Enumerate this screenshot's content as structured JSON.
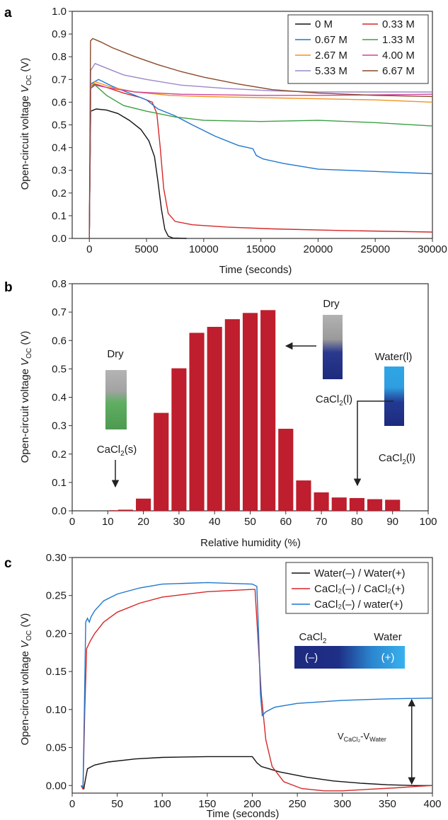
{
  "chart_data": [
    {
      "panel": "a",
      "type": "line",
      "xlabel": "Time (seconds)",
      "ylabel": "Open-circuit voltage V_OC (V)",
      "xlim": [
        -1500,
        30000
      ],
      "ylim": [
        0,
        1.0
      ],
      "xticks": [
        0,
        5000,
        10000,
        15000,
        20000,
        25000,
        30000
      ],
      "yticks": [
        0.0,
        0.1,
        0.2,
        0.3,
        0.4,
        0.5,
        0.6,
        0.7,
        0.8,
        0.9,
        1.0
      ],
      "legend_position": "top-right",
      "series": [
        {
          "name": "0 M",
          "color": "#111111",
          "points": [
            [
              0,
              0
            ],
            [
              120,
              0.56
            ],
            [
              600,
              0.57
            ],
            [
              1500,
              0.565
            ],
            [
              2500,
              0.55
            ],
            [
              3500,
              0.52
            ],
            [
              4500,
              0.48
            ],
            [
              5200,
              0.43
            ],
            [
              5700,
              0.36
            ],
            [
              6000,
              0.25
            ],
            [
              6300,
              0.13
            ],
            [
              6600,
              0.04
            ],
            [
              6900,
              0.01
            ],
            [
              7300,
              0.002
            ],
            [
              8500,
              0.0
            ]
          ]
        },
        {
          "name": "0.33 M",
          "color": "#d62728",
          "points": [
            [
              0,
              0
            ],
            [
              120,
              0.66
            ],
            [
              500,
              0.68
            ],
            [
              1500,
              0.665
            ],
            [
              3000,
              0.64
            ],
            [
              4500,
              0.62
            ],
            [
              5500,
              0.6
            ],
            [
              5900,
              0.55
            ],
            [
              6200,
              0.4
            ],
            [
              6500,
              0.22
            ],
            [
              6900,
              0.11
            ],
            [
              7500,
              0.075
            ],
            [
              9000,
              0.06
            ],
            [
              12000,
              0.05
            ],
            [
              16000,
              0.042
            ],
            [
              22000,
              0.035
            ],
            [
              30000,
              0.028
            ]
          ]
        },
        {
          "name": "0.67 M",
          "color": "#1f77d0",
          "points": [
            [
              0,
              0
            ],
            [
              120,
              0.68
            ],
            [
              800,
              0.7
            ],
            [
              2000,
              0.67
            ],
            [
              3500,
              0.64
            ],
            [
              5000,
              0.61
            ],
            [
              6000,
              0.57
            ],
            [
              7500,
              0.54
            ],
            [
              9000,
              0.5
            ],
            [
              11000,
              0.45
            ],
            [
              13000,
              0.41
            ],
            [
              14300,
              0.395
            ],
            [
              14600,
              0.365
            ],
            [
              15200,
              0.35
            ],
            [
              17000,
              0.33
            ],
            [
              20000,
              0.305
            ],
            [
              25000,
              0.295
            ],
            [
              30000,
              0.285
            ]
          ]
        },
        {
          "name": "1.33 M",
          "color": "#3aa043",
          "points": [
            [
              0,
              0
            ],
            [
              120,
              0.66
            ],
            [
              400,
              0.68
            ],
            [
              1500,
              0.63
            ],
            [
              3000,
              0.585
            ],
            [
              5000,
              0.56
            ],
            [
              7500,
              0.535
            ],
            [
              10000,
              0.52
            ],
            [
              15000,
              0.515
            ],
            [
              20000,
              0.52
            ],
            [
              25000,
              0.51
            ],
            [
              30000,
              0.495
            ]
          ]
        },
        {
          "name": "2.67 M",
          "color": "#f0921e",
          "points": [
            [
              0,
              0
            ],
            [
              120,
              0.67
            ],
            [
              500,
              0.69
            ],
            [
              2000,
              0.665
            ],
            [
              4000,
              0.645
            ],
            [
              7000,
              0.63
            ],
            [
              10000,
              0.625
            ],
            [
              15000,
              0.62
            ],
            [
              20000,
              0.615
            ],
            [
              25000,
              0.61
            ],
            [
              30000,
              0.6
            ]
          ]
        },
        {
          "name": "4.00 M",
          "color": "#d1439a",
          "points": [
            [
              0,
              0
            ],
            [
              120,
              0.66
            ],
            [
              500,
              0.675
            ],
            [
              2000,
              0.66
            ],
            [
              4000,
              0.645
            ],
            [
              8000,
              0.635
            ],
            [
              15000,
              0.63
            ],
            [
              20000,
              0.63
            ],
            [
              25000,
              0.632
            ],
            [
              30000,
              0.635
            ]
          ]
        },
        {
          "name": "5.33 M",
          "color": "#9b88c9",
          "points": [
            [
              0,
              0
            ],
            [
              120,
              0.74
            ],
            [
              500,
              0.77
            ],
            [
              1500,
              0.75
            ],
            [
              3000,
              0.72
            ],
            [
              5000,
              0.7
            ],
            [
              8000,
              0.675
            ],
            [
              12000,
              0.66
            ],
            [
              16000,
              0.65
            ],
            [
              20000,
              0.645
            ],
            [
              25000,
              0.645
            ],
            [
              30000,
              0.645
            ]
          ]
        },
        {
          "name": "6.67 M",
          "color": "#8a4a2a",
          "points": [
            [
              0,
              0
            ],
            [
              100,
              0.87
            ],
            [
              300,
              0.88
            ],
            [
              1000,
              0.865
            ],
            [
              2000,
              0.84
            ],
            [
              4000,
              0.8
            ],
            [
              6000,
              0.765
            ],
            [
              8000,
              0.735
            ],
            [
              10000,
              0.71
            ],
            [
              13000,
              0.68
            ],
            [
              16000,
              0.655
            ],
            [
              20000,
              0.64
            ],
            [
              25000,
              0.63
            ],
            [
              30000,
              0.625
            ]
          ]
        }
      ]
    },
    {
      "panel": "b",
      "type": "bar",
      "xlabel": "Relative humidity (%)",
      "ylabel": "Open-circuit voltage V_OC (V)",
      "xlim": [
        0,
        100
      ],
      "ylim": [
        0,
        0.8
      ],
      "xticks": [
        0,
        10,
        20,
        30,
        40,
        50,
        60,
        70,
        80,
        90,
        100
      ],
      "yticks": [
        0.0,
        0.1,
        0.2,
        0.3,
        0.4,
        0.5,
        0.6,
        0.7,
        0.8
      ],
      "bar_color": "#be1e2d",
      "x": [
        12.5,
        15,
        20,
        25,
        30,
        35,
        40,
        45,
        50,
        55,
        60,
        65,
        70,
        75,
        80,
        85,
        90
      ],
      "values": [
        0.002,
        0.004,
        0.043,
        0.345,
        0.502,
        0.627,
        0.648,
        0.675,
        0.697,
        0.707,
        0.289,
        0.107,
        0.065,
        0.047,
        0.045,
        0.041,
        0.039
      ],
      "annotations": {
        "left_top": "Dry",
        "left_bottom": "CaCl",
        "left_bottom_sub": "2",
        "left_bottom_suffix": "(s)",
        "mid_top": "Dry",
        "mid_bottom": "CaCl",
        "mid_bottom_sub": "2",
        "mid_bottom_suffix": "(l)",
        "right_top": "Water(l)",
        "right_bottom": "CaCl",
        "right_bottom_sub": "2",
        "right_bottom_suffix": "(l)"
      }
    },
    {
      "panel": "c",
      "type": "line",
      "xlabel": "Time (seconds)",
      "ylabel": "Open-circuit voltage V_OC (V)",
      "xlim": [
        0,
        400
      ],
      "ylim": [
        -0.01,
        0.3
      ],
      "xticks": [
        0,
        50,
        100,
        150,
        200,
        250,
        300,
        350,
        400
      ],
      "yticks": [
        0.0,
        0.05,
        0.1,
        0.15,
        0.2,
        0.25,
        0.3
      ],
      "legend_position": "top-right",
      "series": [
        {
          "name": "Water(–) / Water(+)",
          "color": "#111111",
          "points": [
            [
              10,
              0.0
            ],
            [
              13,
              -0.004
            ],
            [
              15,
              0.01
            ],
            [
              17,
              0.022
            ],
            [
              20,
              0.024
            ],
            [
              25,
              0.027
            ],
            [
              40,
              0.031
            ],
            [
              70,
              0.035
            ],
            [
              100,
              0.037
            ],
            [
              150,
              0.038
            ],
            [
              200,
              0.038
            ],
            [
              205,
              0.03
            ],
            [
              210,
              0.025
            ],
            [
              230,
              0.018
            ],
            [
              260,
              0.011
            ],
            [
              290,
              0.006
            ],
            [
              320,
              0.003
            ],
            [
              350,
              0.001
            ],
            [
              380,
              0.0
            ],
            [
              400,
              0.0
            ]
          ]
        },
        {
          "name": "CaCl₂(–) / CaCl₂(+)",
          "color": "#d62728",
          "points": [
            [
              10,
              0.0
            ],
            [
              12,
              -0.005
            ],
            [
              14,
              0.1
            ],
            [
              16,
              0.18
            ],
            [
              20,
              0.19
            ],
            [
              25,
              0.2
            ],
            [
              35,
              0.215
            ],
            [
              50,
              0.228
            ],
            [
              75,
              0.24
            ],
            [
              100,
              0.248
            ],
            [
              150,
              0.255
            ],
            [
              200,
              0.258
            ],
            [
              203,
              0.258
            ],
            [
              206,
              0.2
            ],
            [
              210,
              0.12
            ],
            [
              215,
              0.06
            ],
            [
              222,
              0.025
            ],
            [
              235,
              0.005
            ],
            [
              255,
              -0.004
            ],
            [
              280,
              -0.007
            ],
            [
              300,
              -0.007
            ],
            [
              330,
              -0.005
            ],
            [
              360,
              -0.003
            ],
            [
              385,
              -0.001
            ],
            [
              400,
              0.0
            ]
          ]
        },
        {
          "name": "CaCl₂(–) / water(+)",
          "color": "#1f77d0",
          "points": [
            [
              10,
              0.0
            ],
            [
              12,
              -0.002
            ],
            [
              13.5,
              0.1
            ],
            [
              15,
              0.215
            ],
            [
              17,
              0.22
            ],
            [
              19,
              0.215
            ],
            [
              21,
              0.222
            ],
            [
              25,
              0.23
            ],
            [
              35,
              0.243
            ],
            [
              50,
              0.252
            ],
            [
              75,
              0.26
            ],
            [
              100,
              0.265
            ],
            [
              150,
              0.267
            ],
            [
              200,
              0.265
            ],
            [
              205,
              0.262
            ],
            [
              207,
              0.2
            ],
            [
              209,
              0.12
            ],
            [
              211,
              0.092
            ],
            [
              215,
              0.097
            ],
            [
              225,
              0.103
            ],
            [
              250,
              0.108
            ],
            [
              300,
              0.112
            ],
            [
              350,
              0.114
            ],
            [
              400,
              0.115
            ]
          ]
        }
      ],
      "inset": {
        "left_label": "CaCl",
        "left_label_sub": "2",
        "right_label": "Water",
        "minus": "(–)",
        "plus": "(+)"
      },
      "arrow_annotation": {
        "main": "V",
        "sub1": "CaCl₂",
        "sep": "-V",
        "sub2": "Water"
      }
    }
  ],
  "panel_letters": [
    "a",
    "b",
    "c"
  ],
  "ylabel_prefix": "Open-circuit voltage ",
  "ylabel_var": "V",
  "ylabel_sub": "OC",
  "ylabel_suffix": " (V)"
}
